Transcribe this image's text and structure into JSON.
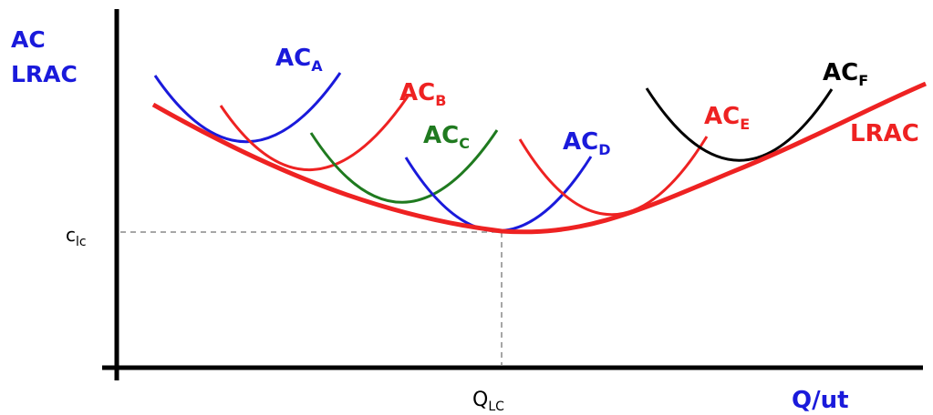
{
  "axes": {
    "y_label_line1": "AC",
    "y_label_line2": "LRAC",
    "x_label": "Q/ut",
    "x_marker": {
      "main": "Q",
      "sub": "LC"
    },
    "y_marker": {
      "main": "c",
      "sub": "lc"
    }
  },
  "curves": [
    {
      "id": "ac-a",
      "main": "AC",
      "sub": "A",
      "color": "#1a1adb"
    },
    {
      "id": "ac-b",
      "main": "AC",
      "sub": "B",
      "color": "#ee2222"
    },
    {
      "id": "ac-c",
      "main": "AC",
      "sub": "C",
      "color": "#1f7a1f"
    },
    {
      "id": "ac-d",
      "main": "AC",
      "sub": "D",
      "color": "#1a1adb"
    },
    {
      "id": "ac-e",
      "main": "AC",
      "sub": "E",
      "color": "#ee2222"
    },
    {
      "id": "ac-f",
      "main": "AC",
      "sub": "F",
      "color": "#000000"
    }
  ],
  "lrac": {
    "label": "LRAC",
    "color": "#ee2222"
  },
  "colors": {
    "axis": "#000000",
    "axis_label": "#1a1adb",
    "guide": "#888888"
  }
}
